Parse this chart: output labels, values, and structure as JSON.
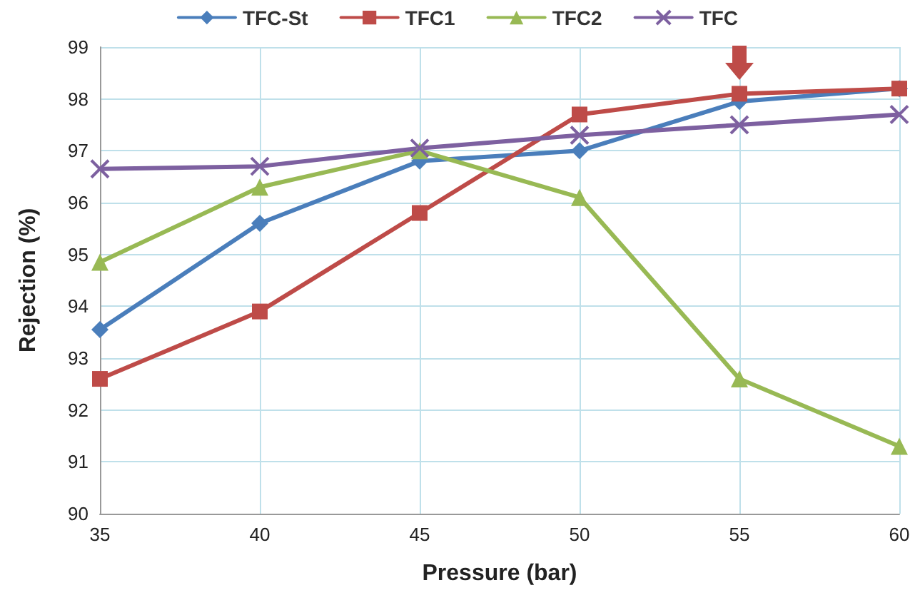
{
  "chart_data": {
    "type": "line",
    "xlabel": "Pressure (bar)",
    "ylabel": "Rejection (%)",
    "x": [
      35,
      40,
      45,
      50,
      55,
      60
    ],
    "xlim": [
      35,
      60
    ],
    "xticks": [
      35,
      40,
      45,
      50,
      55,
      60
    ],
    "ylim": [
      90,
      99
    ],
    "yticks": [
      90,
      91,
      92,
      93,
      94,
      95,
      96,
      97,
      98,
      99
    ],
    "grid": true,
    "legend": "top",
    "series": [
      {
        "name": "TFC-St",
        "color": "#4a7ebb",
        "marker": "diamond",
        "values": [
          93.55,
          95.6,
          96.8,
          97.0,
          97.95,
          98.2
        ]
      },
      {
        "name": "TFC1",
        "color": "#be4b48",
        "marker": "square",
        "values": [
          92.6,
          93.9,
          95.8,
          97.7,
          98.1,
          98.2
        ]
      },
      {
        "name": "TFC2",
        "color": "#98b954",
        "marker": "triangle",
        "values": [
          94.85,
          96.3,
          97.0,
          96.1,
          92.6,
          91.3
        ]
      },
      {
        "name": "TFC",
        "color": "#7d60a0",
        "marker": "cross",
        "values": [
          96.65,
          96.7,
          97.05,
          97.3,
          97.5,
          97.7
        ]
      }
    ]
  }
}
